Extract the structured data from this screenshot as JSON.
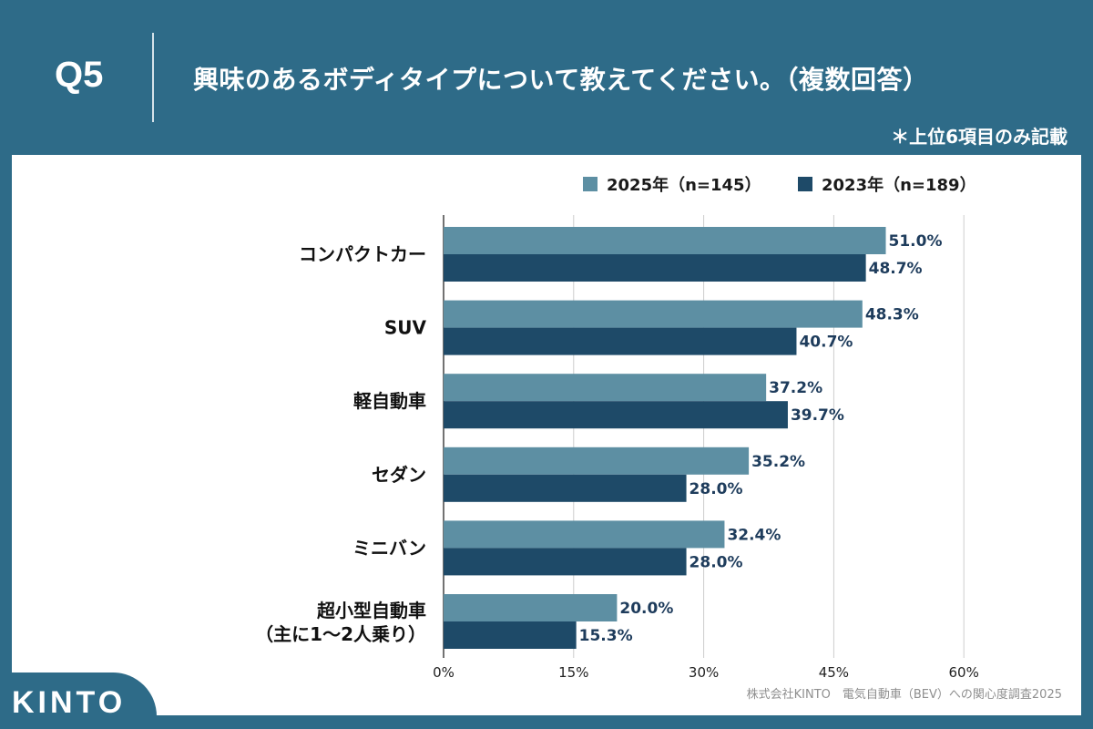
{
  "header": {
    "q_label": "Q5",
    "question": "興味のあるボディタイプについて教えてください。（複数回答）",
    "note": "＊上位6項目のみ記載"
  },
  "footer": {
    "logo": "KINTO",
    "source": "株式会社KINTO　電気自動車（BEV）への関心度調査2025"
  },
  "colors": {
    "background": "#2e6b88",
    "series_2025": "#5d8fa3",
    "series_2023": "#1e4a68",
    "grid": "#cccccc",
    "axis": "#444444",
    "value_label": "#1e3c5c"
  },
  "chart_data": {
    "type": "bar",
    "orientation": "horizontal",
    "title": "",
    "xlabel": "",
    "ylabel": "",
    "xlim": [
      0,
      60
    ],
    "ticks": [
      0,
      15,
      30,
      45,
      60
    ],
    "tick_labels": [
      "0%",
      "15%",
      "30%",
      "45%",
      "60%"
    ],
    "grid": true,
    "legend_position": "top-right",
    "categories": [
      [
        "コンパクトカー"
      ],
      [
        "SUV"
      ],
      [
        "軽自動車"
      ],
      [
        "セダン"
      ],
      [
        "ミニバン"
      ],
      [
        "超小型自動車",
        "（主に1～2人乗り）"
      ]
    ],
    "series": [
      {
        "name": "2025年（n=145）",
        "values": [
          51.0,
          48.3,
          37.2,
          35.2,
          32.4,
          20.0
        ],
        "labels": [
          "51.0%",
          "48.3%",
          "37.2%",
          "35.2%",
          "32.4%",
          "20.0%"
        ]
      },
      {
        "name": "2023年（n=189）",
        "values": [
          48.7,
          40.7,
          39.7,
          28.0,
          28.0,
          15.3
        ],
        "labels": [
          "48.7%",
          "40.7%",
          "39.7%",
          "28.0%",
          "28.0%",
          "15.3%"
        ]
      }
    ]
  }
}
